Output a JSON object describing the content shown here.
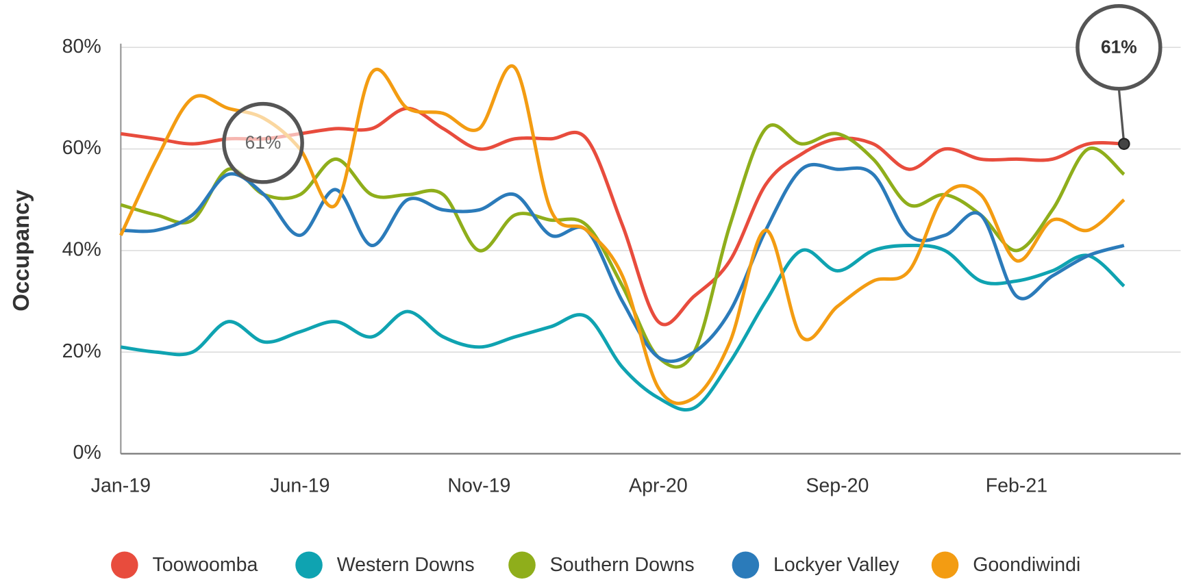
{
  "chart_data": {
    "type": "line",
    "y_label": "Occupancy",
    "categories": [
      "Jan-19",
      null,
      null,
      null,
      null,
      "Jun-19",
      null,
      null,
      null,
      null,
      "Nov-19",
      null,
      null,
      null,
      null,
      "Apr-20",
      null,
      null,
      null,
      null,
      "Sep-20",
      null,
      null,
      null,
      null,
      "Feb-21",
      null,
      null,
      null
    ],
    "series": [
      {
        "name": "Toowoomba",
        "color": "#e84c3d",
        "values": [
          63,
          62,
          61,
          62,
          62,
          63,
          64,
          64,
          68,
          64,
          60,
          62,
          62,
          62,
          45,
          26,
          31,
          38,
          53,
          59,
          62,
          61,
          56,
          60,
          58,
          58,
          58,
          61,
          61
        ]
      },
      {
        "name": "Western Downs",
        "color": "#0fa3b1",
        "values": [
          21,
          20,
          20,
          26,
          22,
          24,
          26,
          23,
          28,
          23,
          21,
          23,
          25,
          27,
          17,
          11,
          9,
          18,
          30,
          40,
          36,
          40,
          41,
          40,
          34,
          34,
          36,
          39,
          33
        ]
      },
      {
        "name": "Southern Downs",
        "color": "#8fae1b",
        "values": [
          49,
          47,
          46,
          56,
          51,
          51,
          58,
          51,
          51,
          51,
          40,
          47,
          46,
          45,
          33,
          19,
          20,
          45,
          64,
          61,
          63,
          58,
          49,
          51,
          47,
          40,
          48,
          60,
          55
        ]
      },
      {
        "name": "Lockyer Valley",
        "color": "#2b7bba",
        "values": [
          44,
          44,
          47,
          55,
          51,
          43,
          52,
          41,
          50,
          48,
          48,
          51,
          43,
          44,
          30,
          19,
          20,
          28,
          44,
          56,
          56,
          55,
          43,
          43,
          47,
          31,
          35,
          39,
          41
        ]
      },
      {
        "name": "Goondiwindi",
        "color": "#f39c12",
        "values": [
          43,
          58,
          70,
          68,
          66,
          60,
          49,
          75,
          68,
          67,
          64,
          76,
          48,
          44,
          35,
          13,
          11,
          22,
          44,
          23,
          29,
          34,
          36,
          51,
          51,
          38,
          46,
          44,
          50
        ]
      }
    ],
    "ylim": [
      0,
      80
    ],
    "yticks": [
      {
        "value": 0,
        "label": "0%"
      },
      {
        "value": 20,
        "label": "20%"
      },
      {
        "value": 40,
        "label": "40%"
      },
      {
        "value": 60,
        "label": "60%"
      },
      {
        "value": 80,
        "label": "80%"
      }
    ],
    "grid": true,
    "legend": "bottom",
    "annotations": [
      "61%",
      "61%"
    ]
  }
}
